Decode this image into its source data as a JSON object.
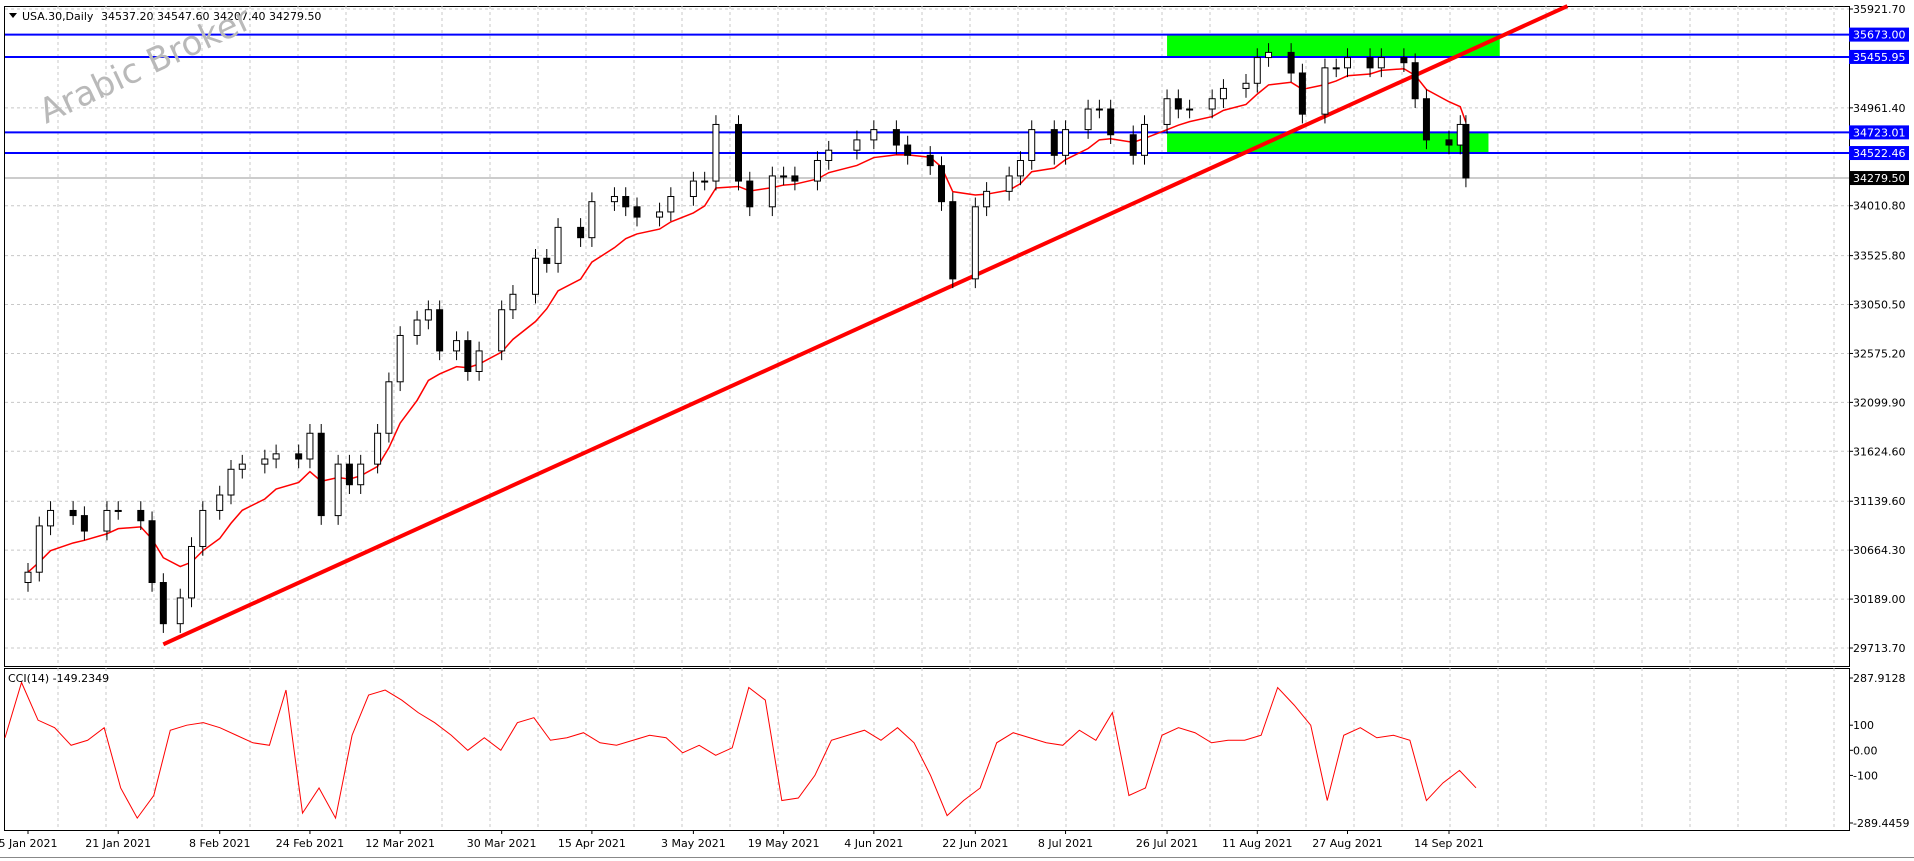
{
  "header": {
    "symbol_caption": "USA.30,Daily",
    "ohlc": "34537.20 34547.60 34207.40 34279.50"
  },
  "watermark": "Arabic Broker",
  "colors": {
    "background": "#ffffff",
    "grid": "#c8c8c8",
    "candle": "#000000",
    "ma_line": "#ff0000",
    "trendline": "#ff0000",
    "support_resistance": "#0000ff",
    "zone": "#00ff00",
    "cci_line": "#ff0000",
    "price_tag_bg": "#0000ff",
    "last_price_tag_bg": "#000000"
  },
  "chart_data": [
    {
      "type": "candlestick",
      "title": "USA.30,Daily",
      "ylim": [
        29500,
        35921.7
      ],
      "y_ticks": [
        35921.7,
        34961.4,
        34010.8,
        33525.8,
        33050.5,
        32575.2,
        32099.9,
        31624.6,
        31139.6,
        30664.3,
        30189.0,
        29713.7
      ],
      "x_date_labels": [
        "5 Jan 2021",
        "21 Jan 2021",
        "8 Feb 2021",
        "24 Feb 2021",
        "12 Mar 2021",
        "30 Mar 2021",
        "15 Apr 2021",
        "3 May 2021",
        "19 May 2021",
        "4 Jun 2021",
        "22 Jun 2021",
        "8 Jul 2021",
        "26 Jul 2021",
        "11 Aug 2021",
        "27 Aug 2021",
        "14 Sep 2021"
      ],
      "close_series": [
        [
          "5 Jan 2021",
          30450
        ],
        [
          "7 Jan 2021",
          30900
        ],
        [
          "9 Jan 2021",
          31050
        ],
        [
          "13 Jan 2021",
          31000
        ],
        [
          "15 Jan 2021",
          30850
        ],
        [
          "19 Jan 2021",
          31050
        ],
        [
          "21 Jan 2021",
          31050
        ],
        [
          "25 Jan 2021",
          30950
        ],
        [
          "27 Jan 2021",
          30350
        ],
        [
          "29 Jan 2021",
          29950
        ],
        [
          "1 Feb 2021",
          30200
        ],
        [
          "3 Feb 2021",
          30700
        ],
        [
          "5 Feb 2021",
          31050
        ],
        [
          "8 Feb 2021",
          31200
        ],
        [
          "10 Feb 2021",
          31450
        ],
        [
          "12 Feb 2021",
          31500
        ],
        [
          "16 Feb 2021",
          31550
        ],
        [
          "18 Feb 2021",
          31600
        ],
        [
          "22 Feb 2021",
          31550
        ],
        [
          "24 Feb 2021",
          31800
        ],
        [
          "26 Feb 2021",
          31000
        ],
        [
          "1 Mar 2021",
          31500
        ],
        [
          "3 Mar 2021",
          31300
        ],
        [
          "5 Mar 2021",
          31500
        ],
        [
          "8 Mar 2021",
          31800
        ],
        [
          "10 Mar 2021",
          32300
        ],
        [
          "12 Mar 2021",
          32750
        ],
        [
          "15 Mar 2021",
          32900
        ],
        [
          "17 Mar 2021",
          33000
        ],
        [
          "19 Mar 2021",
          32600
        ],
        [
          "22 Mar 2021",
          32700
        ],
        [
          "24 Mar 2021",
          32400
        ],
        [
          "26 Mar 2021",
          32600
        ],
        [
          "30 Mar 2021",
          33000
        ],
        [
          "1 Apr 2021",
          33150
        ],
        [
          "5 Apr 2021",
          33500
        ],
        [
          "7 Apr 2021",
          33450
        ],
        [
          "9 Apr 2021",
          33800
        ],
        [
          "13 Apr 2021",
          33700
        ],
        [
          "15 Apr 2021",
          34050
        ],
        [
          "19 Apr 2021",
          34100
        ],
        [
          "21 Apr 2021",
          34000
        ],
        [
          "23 Apr 2021",
          33900
        ],
        [
          "27 Apr 2021",
          33950
        ],
        [
          "29 Apr 2021",
          34100
        ],
        [
          "3 May 2021",
          34250
        ],
        [
          "5 May 2021",
          34250
        ],
        [
          "7 May 2021",
          34800
        ],
        [
          "11 May 2021",
          34250
        ],
        [
          "13 May 2021",
          34000
        ],
        [
          "17 May 2021",
          34300
        ],
        [
          "19 May 2021",
          34300
        ],
        [
          "21 May 2021",
          34250
        ],
        [
          "25 May 2021",
          34450
        ],
        [
          "27 May 2021",
          34550
        ],
        [
          "1 Jun 2021",
          34650
        ],
        [
          "4 Jun 2021",
          34750
        ],
        [
          "8 Jun 2021",
          34600
        ],
        [
          "10 Jun 2021",
          34500
        ],
        [
          "14 Jun 2021",
          34400
        ],
        [
          "16 Jun 2021",
          34050
        ],
        [
          "18 Jun 2021",
          33300
        ],
        [
          "22 Jun 2021",
          34000
        ],
        [
          "24 Jun 2021",
          34150
        ],
        [
          "28 Jun 2021",
          34300
        ],
        [
          "30 Jun 2021",
          34450
        ],
        [
          "2 Jul 2021",
          34750
        ],
        [
          "6 Jul 2021",
          34500
        ],
        [
          "8 Jul 2021",
          34750
        ],
        [
          "12 Jul 2021",
          34950
        ],
        [
          "14 Jul 2021",
          34950
        ],
        [
          "16 Jul 2021",
          34700
        ],
        [
          "20 Jul 2021",
          34500
        ],
        [
          "22 Jul 2021",
          34800
        ],
        [
          "26 Jul 2021",
          35050
        ],
        [
          "28 Jul 2021",
          34950
        ],
        [
          "30 Jul 2021",
          34950
        ],
        [
          "3 Aug 2021",
          35050
        ],
        [
          "5 Aug 2021",
          35150
        ],
        [
          "9 Aug 2021",
          35200
        ],
        [
          "11 Aug 2021",
          35450
        ],
        [
          "13 Aug 2021",
          35500
        ],
        [
          "17 Aug 2021",
          35300
        ],
        [
          "19 Aug 2021",
          34900
        ],
        [
          "23 Aug 2021",
          35350
        ],
        [
          "25 Aug 2021",
          35350
        ],
        [
          "27 Aug 2021",
          35450
        ],
        [
          "31 Aug 2021",
          35350
        ],
        [
          "2 Sep 2021",
          35450
        ],
        [
          "6 Sep 2021",
          35400
        ],
        [
          "8 Sep 2021",
          35050
        ],
        [
          "10 Sep 2021",
          34650
        ],
        [
          "14 Sep 2021",
          34600
        ],
        [
          "16 Sep 2021",
          34800
        ],
        [
          "17 Sep 2021",
          34280
        ]
      ],
      "series": [
        {
          "name": "",
          "kind": "moving_average_line",
          "color": "#ff0000"
        }
      ],
      "horizontal_levels": [
        35673.0,
        35455.95,
        34723.01,
        34522.46
      ],
      "level_labels": [
        "35673.00",
        "35455.95",
        "34723.01",
        "34522.46"
      ],
      "last_price": 34279.5,
      "last_price_label": "34279.50",
      "zones": [
        {
          "from_date": "26 Jul 2021",
          "to_date": "23 Sep 2021",
          "low": 35455.95,
          "high": 35673.0
        },
        {
          "from_date": "26 Jul 2021",
          "to_date": "21 Sep 2021",
          "low": 34522.46,
          "high": 34723.01
        }
      ],
      "trendline": {
        "from": [
          "29 Jan 2021",
          29750
        ],
        "to": [
          "5 Oct 2021",
          35950
        ]
      }
    },
    {
      "type": "line",
      "title": "CCI(14) -149.2349",
      "label": "CCI(14) -149.2349",
      "ylim": [
        -289.4459,
        287.9128
      ],
      "y_ticks": [
        287.9128,
        100,
        0.0,
        -100,
        -289.4459
      ],
      "y_tick_labels": [
        "287.9128",
        "100",
        "0.00",
        "-100",
        "-289.4459"
      ],
      "values": [
        50,
        270,
        120,
        90,
        20,
        40,
        90,
        -150,
        -270,
        -180,
        80,
        100,
        110,
        90,
        60,
        30,
        20,
        240,
        -250,
        -150,
        -270,
        60,
        220,
        240,
        200,
        150,
        110,
        60,
        0,
        50,
        0,
        110,
        130,
        40,
        50,
        70,
        30,
        20,
        40,
        60,
        50,
        -10,
        20,
        -20,
        10,
        250,
        200,
        -200,
        -190,
        -100,
        40,
        60,
        80,
        40,
        90,
        30,
        -100,
        -260,
        -200,
        -150,
        30,
        70,
        50,
        30,
        20,
        80,
        40,
        150,
        -180,
        -150,
        60,
        90,
        70,
        30,
        40,
        40,
        60,
        250,
        180,
        100,
        -200,
        60,
        90,
        50,
        60,
        40,
        -200,
        -130,
        -80,
        -149.2349
      ]
    }
  ]
}
